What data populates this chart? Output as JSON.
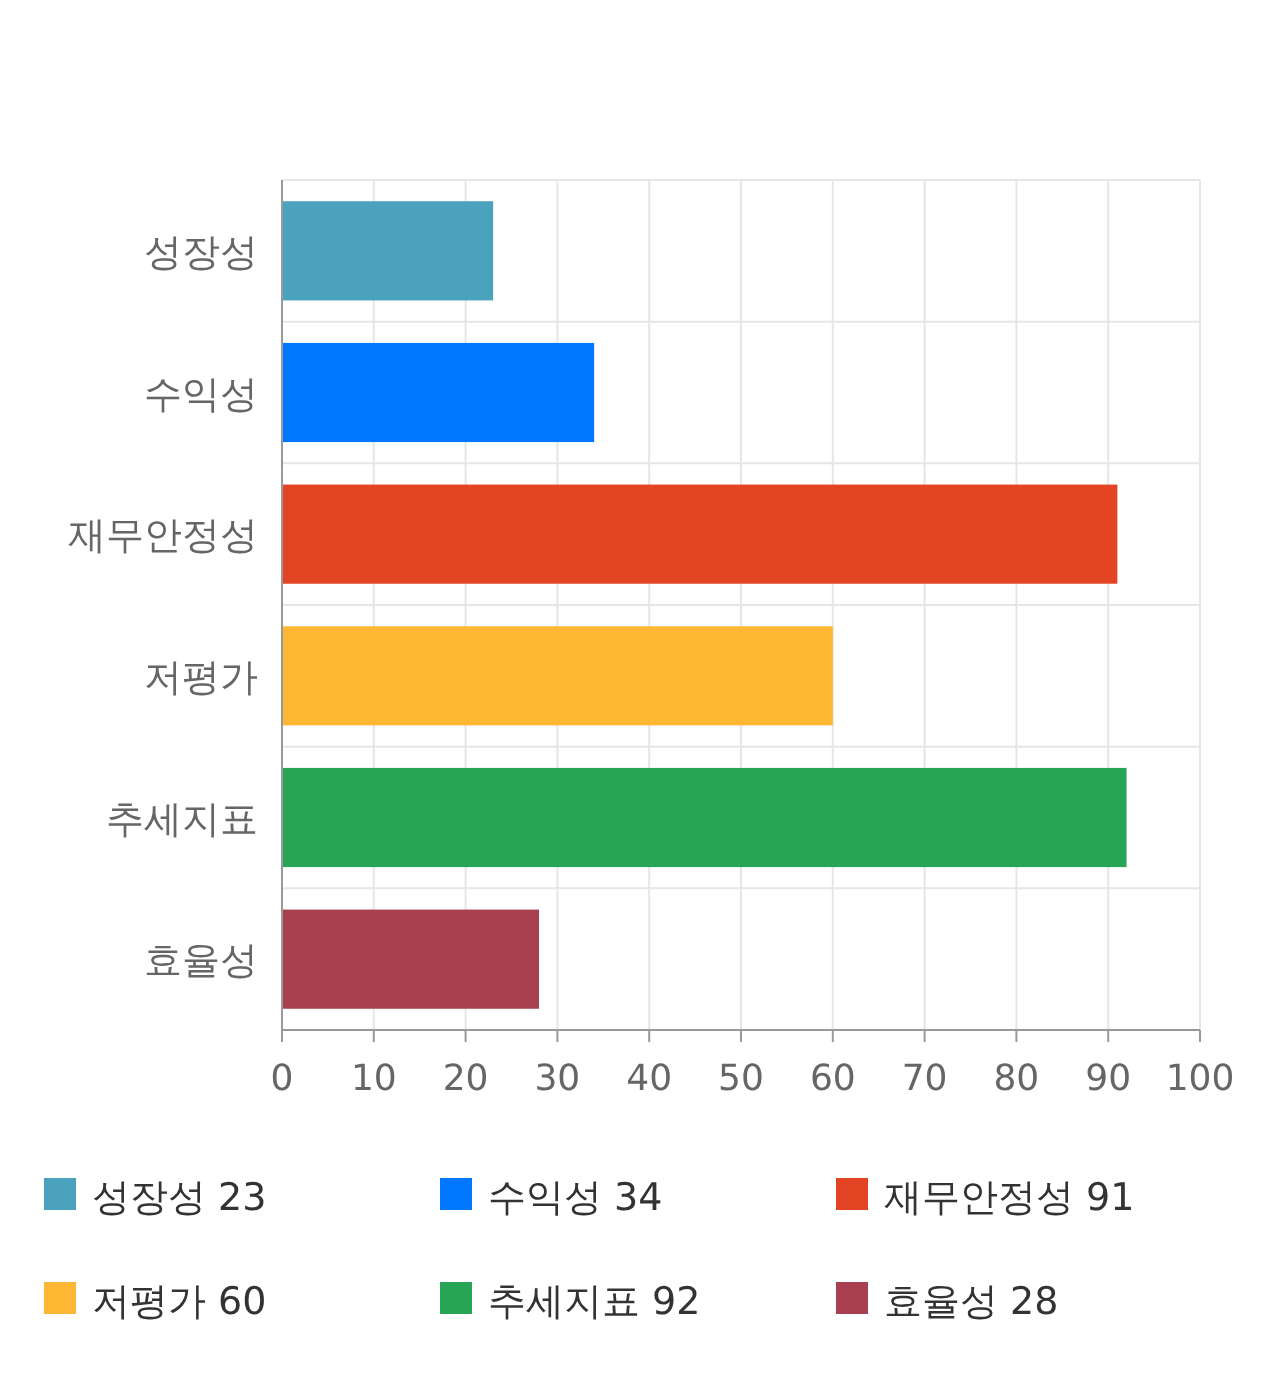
{
  "chart_data": {
    "type": "bar",
    "orientation": "horizontal",
    "categories": [
      "성장성",
      "수익성",
      "재무안정성",
      "저평가",
      "추세지표",
      "효율성"
    ],
    "series": [
      {
        "name": "성장성 23",
        "color": "#4ba2bc",
        "values": [
          23,
          null,
          null,
          null,
          null,
          null
        ]
      },
      {
        "name": "수익성 34",
        "color": "#0077ff",
        "values": [
          null,
          34,
          null,
          null,
          null,
          null
        ]
      },
      {
        "name": "재무안정성 91",
        "color": "#e34423",
        "values": [
          null,
          null,
          91,
          null,
          null,
          null
        ]
      },
      {
        "name": "저평가 60",
        "color": "#ffb733",
        "values": [
          null,
          null,
          null,
          60,
          null,
          null
        ]
      },
      {
        "name": "추세지표 92",
        "color": "#28a554",
        "values": [
          null,
          null,
          null,
          null,
          92,
          null
        ]
      },
      {
        "name": "효율성 28",
        "color": "#a8404f",
        "values": [
          null,
          null,
          null,
          null,
          null,
          28
        ]
      }
    ],
    "xlim": [
      0,
      100
    ],
    "xticks": [
      0,
      10,
      20,
      30,
      40,
      50,
      60,
      70,
      80,
      90,
      100
    ],
    "grid": true,
    "legend": "bottom"
  }
}
